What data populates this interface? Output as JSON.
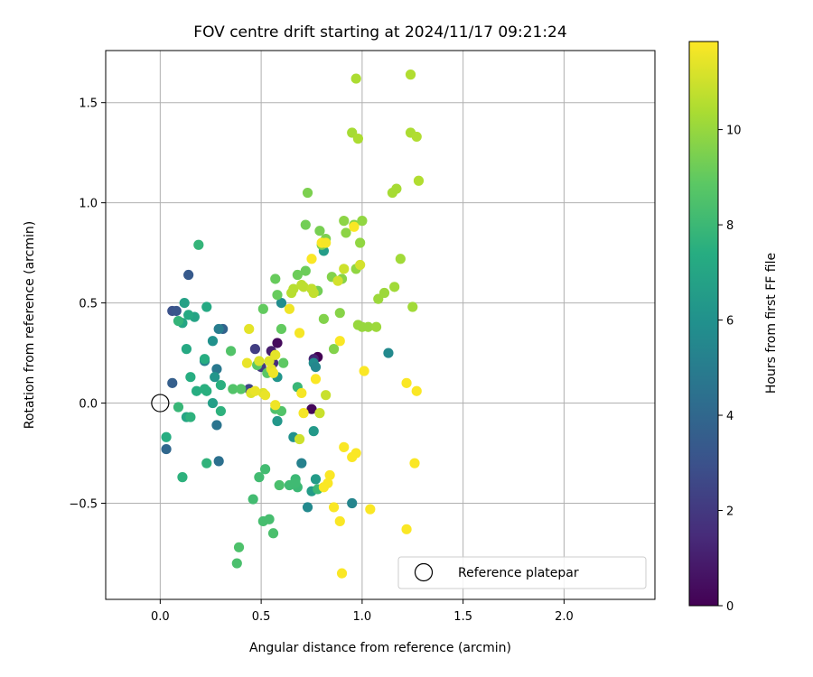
{
  "chart_data": {
    "type": "scatter",
    "title": "FOV centre drift starting at 2024/11/17 09:21:24",
    "xlabel": "Angular distance from reference (arcmin)",
    "ylabel": "Rotation from reference (arcmin)",
    "xlim": [
      -0.27,
      2.45
    ],
    "ylim": [
      -0.98,
      1.76
    ],
    "xticks": [
      0.0,
      0.5,
      1.0,
      1.5,
      2.0
    ],
    "xtick_labels": [
      "0.0",
      "0.5",
      "1.0",
      "1.5",
      "2.0"
    ],
    "yticks": [
      -0.5,
      0.0,
      0.5,
      1.0,
      1.5
    ],
    "ytick_labels": [
      "−0.5",
      "0.0",
      "0.5",
      "1.0",
      "1.5"
    ],
    "grid": true,
    "colormap": "viridis",
    "colorbar": {
      "label": "Hours from first FF file",
      "range": [
        0,
        11.85
      ],
      "ticks": [
        0,
        2,
        4,
        6,
        8,
        10
      ],
      "tick_labels": [
        "0",
        "2",
        "4",
        "6",
        "8",
        "10"
      ]
    },
    "legend": {
      "position": "lower-right",
      "entries": [
        {
          "label": "Reference platepar",
          "marker": "open-circle",
          "x": 0,
          "y": 0
        }
      ]
    },
    "points": [
      [
        0.78,
        0.23,
        0
      ],
      [
        0.75,
        -0.03,
        0.2
      ],
      [
        0.55,
        0.26,
        1
      ],
      [
        0.58,
        0.3,
        0.3
      ],
      [
        0.76,
        0.22,
        1.2
      ],
      [
        0.56,
        0.2,
        1.5
      ],
      [
        0.5,
        0.18,
        2
      ],
      [
        0.47,
        0.27,
        2.2
      ],
      [
        0.44,
        0.07,
        2.5
      ],
      [
        0.06,
        0.46,
        3
      ],
      [
        0.08,
        0.46,
        3.2
      ],
      [
        0.14,
        0.64,
        3.4
      ],
      [
        0.31,
        0.37,
        3.8
      ],
      [
        0.06,
        0.1,
        3.6
      ],
      [
        0.03,
        -0.23,
        4
      ],
      [
        0.29,
        -0.29,
        4.4
      ],
      [
        0.28,
        -0.11,
        4.6
      ],
      [
        0.28,
        0.17,
        4.8
      ],
      [
        0.29,
        0.37,
        5
      ],
      [
        0.22,
        0.21,
        5.2
      ],
      [
        0.7,
        -0.3,
        5.2
      ],
      [
        0.95,
        -0.5,
        5.4
      ],
      [
        0.73,
        -0.52,
        5.6
      ],
      [
        0.76,
        0.2,
        5.8
      ],
      [
        0.77,
        0.18,
        5.5
      ],
      [
        1.13,
        0.25,
        5.6
      ],
      [
        0.6,
        0.5,
        5.8
      ],
      [
        0.66,
        -0.17,
        6
      ],
      [
        0.26,
        0.31,
        6
      ],
      [
        0.27,
        0.13,
        6.2
      ],
      [
        0.58,
        0.13,
        6.2
      ],
      [
        0.58,
        -0.09,
        6.3
      ],
      [
        0.76,
        -0.14,
        6.4
      ],
      [
        0.75,
        -0.44,
        6.5
      ],
      [
        0.77,
        -0.38,
        6.5
      ],
      [
        0.81,
        0.76,
        6.6
      ],
      [
        0.26,
        0.0,
        6.7
      ],
      [
        0.12,
        0.5,
        6.8
      ],
      [
        0.17,
        0.43,
        6.9
      ],
      [
        0.13,
        -0.07,
        7
      ],
      [
        0.11,
        0.4,
        7
      ],
      [
        0.23,
        0.48,
        7.2
      ],
      [
        0.14,
        0.44,
        7.2
      ],
      [
        0.03,
        -0.17,
        7.4
      ],
      [
        0.13,
        0.27,
        7.2
      ],
      [
        0.22,
        0.22,
        7.4
      ],
      [
        0.15,
        0.13,
        7.4
      ],
      [
        0.18,
        0.06,
        7.4
      ],
      [
        0.22,
        0.07,
        7.5
      ],
      [
        0.23,
        0.06,
        7.5
      ],
      [
        0.3,
        0.09,
        7.5
      ],
      [
        0.3,
        -0.04,
        7.6
      ],
      [
        0.15,
        -0.07,
        7.6
      ],
      [
        0.11,
        -0.37,
        7.6
      ],
      [
        0.23,
        -0.3,
        7.7
      ],
      [
        0.19,
        0.79,
        7.8
      ],
      [
        0.09,
        0.41,
        7.8
      ],
      [
        0.09,
        -0.02,
        7.9
      ],
      [
        0.68,
        0.08,
        7.9
      ],
      [
        0.67,
        -0.38,
        8
      ],
      [
        0.68,
        -0.42,
        8
      ],
      [
        0.78,
        -0.43,
        8
      ],
      [
        0.64,
        -0.41,
        8.1
      ],
      [
        0.67,
        -0.4,
        8.1
      ],
      [
        0.52,
        -0.33,
        8.2
      ],
      [
        0.49,
        -0.37,
        8.2
      ],
      [
        0.46,
        -0.48,
        8.2
      ],
      [
        0.51,
        -0.59,
        8.3
      ],
      [
        0.54,
        -0.58,
        8.3
      ],
      [
        0.56,
        -0.65,
        8.4
      ],
      [
        0.59,
        -0.41,
        8.4
      ],
      [
        0.38,
        -0.8,
        8.4
      ],
      [
        0.39,
        -0.72,
        8.5
      ],
      [
        0.57,
        -0.03,
        8.5
      ],
      [
        0.6,
        -0.04,
        8.6
      ],
      [
        0.35,
        0.26,
        8.6
      ],
      [
        0.36,
        0.07,
        8.6
      ],
      [
        0.4,
        0.07,
        8.7
      ],
      [
        0.48,
        0.19,
        8.8
      ],
      [
        0.53,
        0.15,
        8.8
      ],
      [
        0.61,
        0.2,
        8.9
      ],
      [
        0.51,
        0.47,
        9
      ],
      [
        0.6,
        0.37,
        9
      ],
      [
        0.58,
        0.54,
        9.1
      ],
      [
        0.57,
        0.62,
        9.1
      ],
      [
        0.68,
        0.64,
        9.2
      ],
      [
        0.72,
        0.66,
        9.2
      ],
      [
        0.78,
        0.56,
        9.3
      ],
      [
        0.75,
        0.57,
        9.3
      ],
      [
        0.72,
        0.89,
        9.3
      ],
      [
        0.79,
        0.86,
        9.4
      ],
      [
        0.8,
        0.79,
        9.4
      ],
      [
        0.82,
        0.82,
        9.5
      ],
      [
        0.73,
        1.05,
        9.5
      ],
      [
        0.85,
        0.63,
        9.6
      ],
      [
        0.81,
        0.42,
        9.6
      ],
      [
        0.86,
        0.27,
        9.6
      ],
      [
        0.89,
        0.45,
        9.7
      ],
      [
        0.9,
        0.62,
        9.7
      ],
      [
        0.92,
        0.85,
        9.8
      ],
      [
        0.91,
        0.91,
        9.8
      ],
      [
        0.96,
        0.89,
        9.8
      ],
      [
        0.99,
        0.8,
        9.9
      ],
      [
        0.97,
        0.67,
        9.9
      ],
      [
        1.0,
        0.91,
        9.9
      ],
      [
        0.98,
        0.39,
        10
      ],
      [
        1.0,
        0.38,
        10
      ],
      [
        1.03,
        0.38,
        10
      ],
      [
        1.07,
        0.38,
        10.1
      ],
      [
        1.08,
        0.52,
        10.1
      ],
      [
        1.11,
        0.55,
        10.1
      ],
      [
        1.16,
        0.58,
        10.2
      ],
      [
        1.19,
        0.72,
        10.2
      ],
      [
        1.25,
        0.48,
        10.2
      ],
      [
        1.15,
        1.05,
        10.3
      ],
      [
        1.17,
        1.07,
        10.3
      ],
      [
        0.95,
        1.35,
        10.3
      ],
      [
        0.98,
        1.32,
        10.4
      ],
      [
        0.97,
        1.62,
        10.4
      ],
      [
        1.24,
        1.35,
        10.4
      ],
      [
        1.27,
        1.33,
        10.5
      ],
      [
        1.24,
        1.64,
        10.5
      ],
      [
        1.28,
        1.11,
        10.5
      ],
      [
        0.65,
        0.55,
        10.6
      ],
      [
        0.66,
        0.57,
        10.6
      ],
      [
        0.7,
        0.59,
        10.7
      ],
      [
        0.71,
        0.58,
        10.7
      ],
      [
        0.75,
        0.57,
        10.8
      ],
      [
        0.76,
        0.55,
        10.8
      ],
      [
        0.82,
        0.04,
        10.9
      ],
      [
        0.79,
        -0.05,
        10.9
      ],
      [
        0.69,
        -0.18,
        11
      ],
      [
        0.91,
        0.67,
        11
      ],
      [
        0.88,
        0.61,
        11.1
      ],
      [
        0.99,
        0.69,
        11.1
      ],
      [
        0.49,
        0.21,
        11.2
      ],
      [
        0.51,
        0.05,
        11.3
      ],
      [
        0.45,
        0.05,
        11.3
      ],
      [
        0.54,
        0.21,
        11.3
      ],
      [
        0.55,
        0.17,
        11.4
      ],
      [
        0.57,
        0.24,
        11.4
      ],
      [
        0.44,
        0.37,
        11.4
      ],
      [
        0.43,
        0.2,
        11.5
      ],
      [
        0.47,
        0.06,
        11.5
      ],
      [
        0.52,
        0.04,
        11.5
      ],
      [
        0.56,
        0.15,
        11.6
      ],
      [
        0.57,
        -0.01,
        11.6
      ],
      [
        0.64,
        0.47,
        11.6
      ],
      [
        0.69,
        0.35,
        11.7
      ],
      [
        0.7,
        0.05,
        11.7
      ],
      [
        0.71,
        -0.05,
        11.7
      ],
      [
        0.75,
        0.72,
        11.8
      ],
      [
        0.77,
        0.12,
        11.8
      ],
      [
        0.8,
        0.8,
        11.8
      ],
      [
        0.84,
        -0.36,
        11.8
      ],
      [
        0.83,
        -0.4,
        11.8
      ],
      [
        0.81,
        -0.42,
        11.8
      ],
      [
        0.86,
        -0.52,
        11.8
      ],
      [
        0.89,
        -0.59,
        11.8
      ],
      [
        0.9,
        -0.85,
        11.8
      ],
      [
        0.91,
        -0.22,
        11.8
      ],
      [
        0.95,
        -0.27,
        11.8
      ],
      [
        0.97,
        -0.25,
        11.8
      ],
      [
        1.04,
        -0.53,
        11.8
      ],
      [
        1.01,
        0.16,
        11.8
      ],
      [
        0.89,
        0.31,
        11.8
      ],
      [
        1.22,
        -0.63,
        11.8
      ],
      [
        1.22,
        0.1,
        11.8
      ],
      [
        1.26,
        -0.3,
        11.8
      ],
      [
        1.27,
        0.06,
        11.8
      ],
      [
        0.96,
        0.88,
        11.8
      ],
      [
        0.82,
        0.8,
        11.7
      ]
    ]
  }
}
